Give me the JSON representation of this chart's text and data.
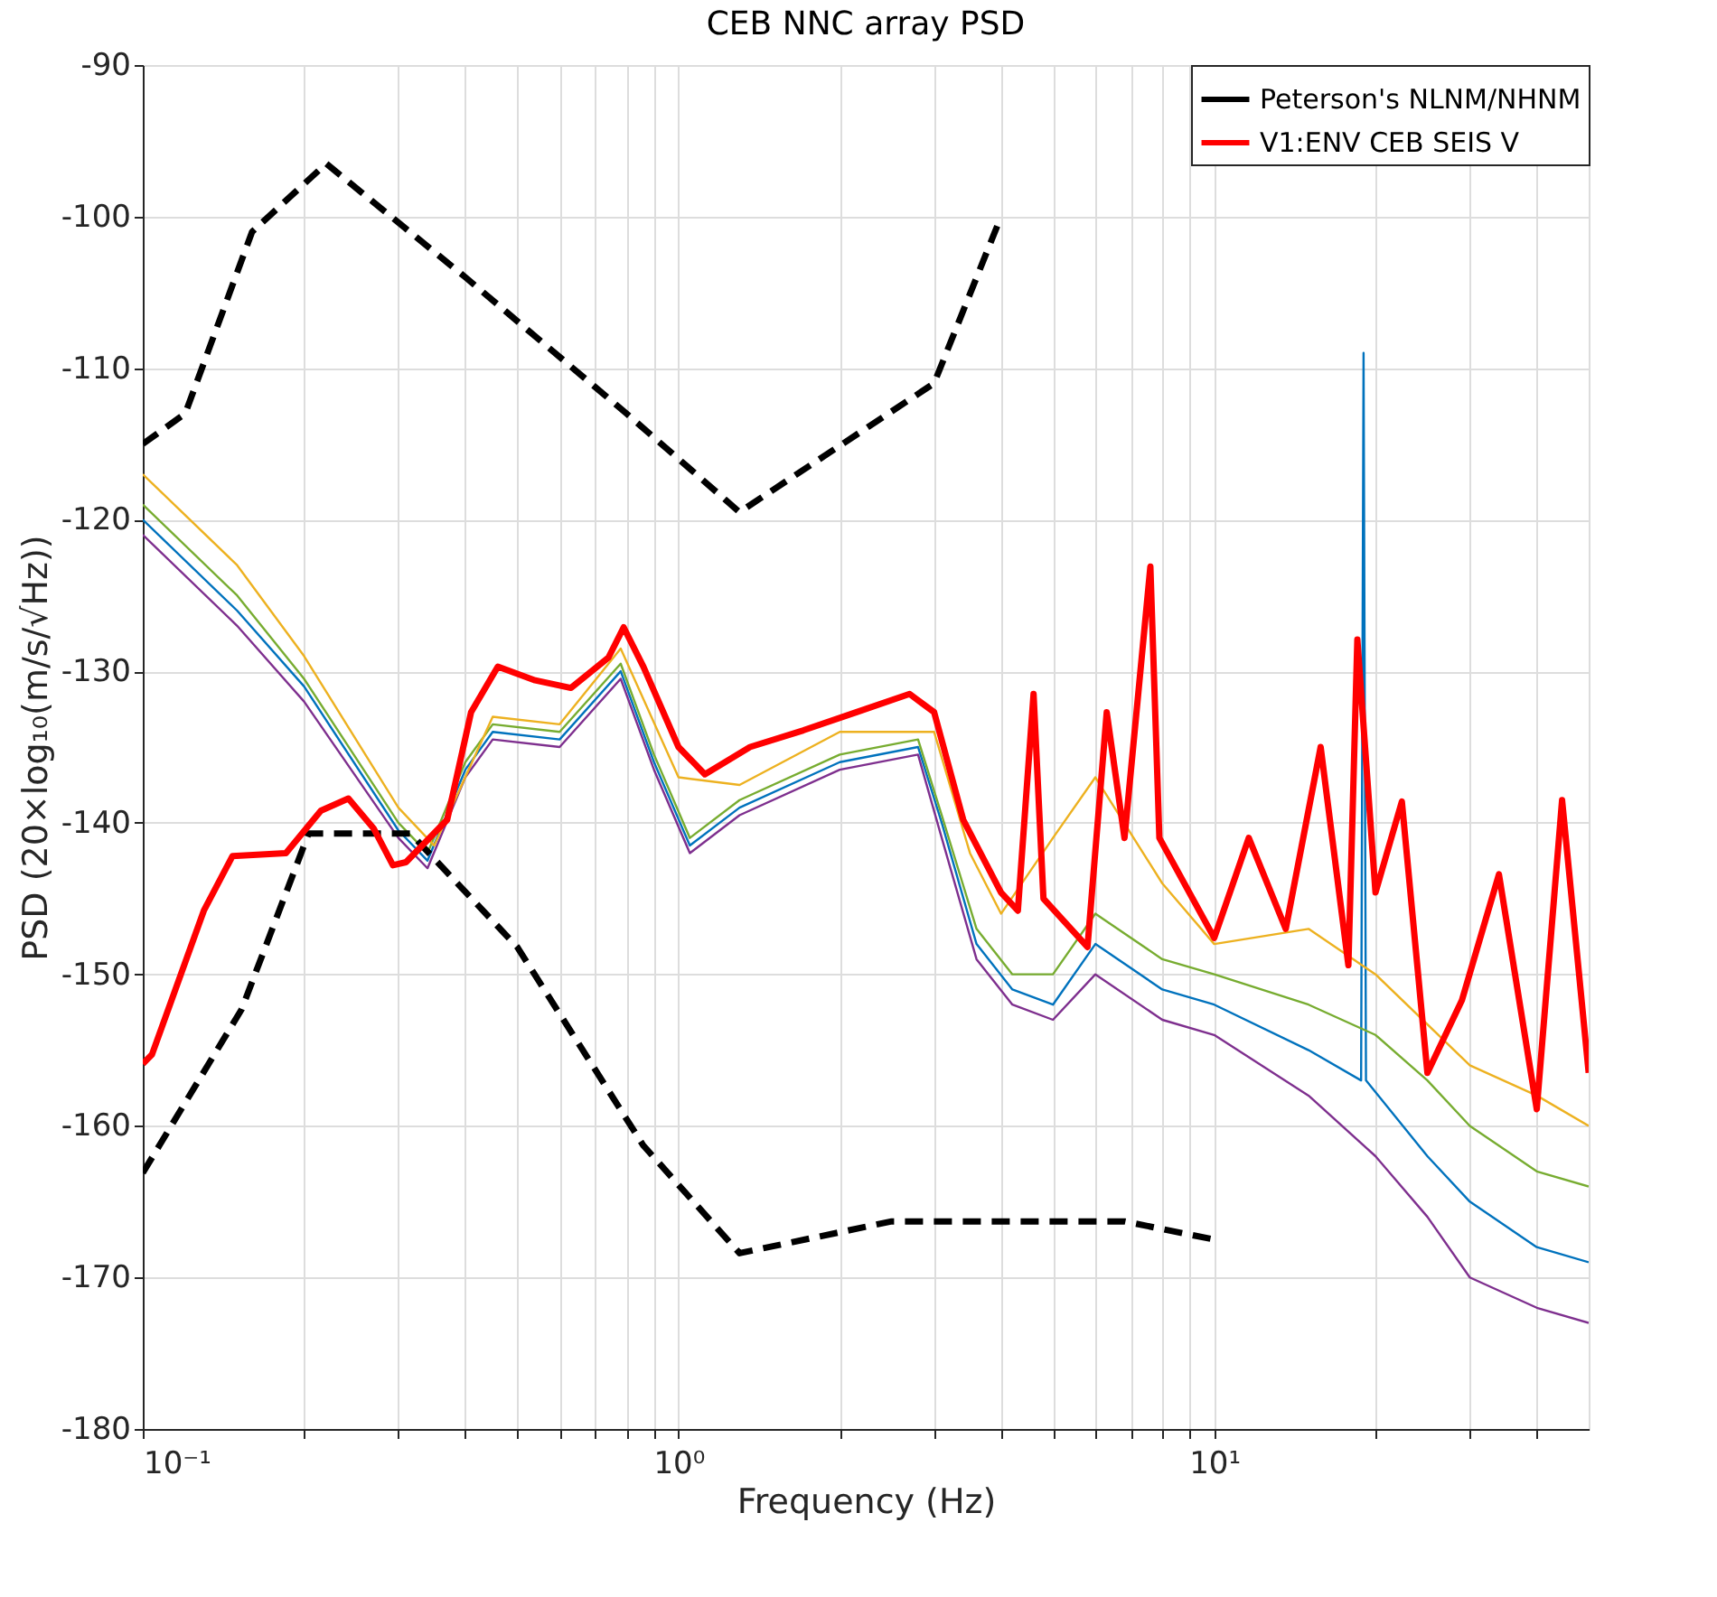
{
  "chart_data": {
    "type": "line",
    "title": "CEB NNC array PSD",
    "xlabel": "Frequency (Hz)",
    "ylabel": "PSD (20×log₁₀(m/s/√Hz))",
    "log": "x",
    "grid": true,
    "legend": "top right",
    "xlim": [
      0.1,
      50
    ],
    "ylim": [
      -180,
      -90
    ],
    "xticks": [
      {
        "value": 0.1,
        "label": "10⁻¹"
      },
      {
        "value": 0.2,
        "label": null
      },
      {
        "value": 0.3,
        "label": null
      },
      {
        "value": 0.4,
        "label": null
      },
      {
        "value": 0.5,
        "label": null
      },
      {
        "value": 0.6,
        "label": null
      },
      {
        "value": 0.7,
        "label": null
      },
      {
        "value": 0.8,
        "label": null
      },
      {
        "value": 0.9,
        "label": null
      },
      {
        "value": 1,
        "label": "10⁰"
      },
      {
        "value": 2,
        "label": null
      },
      {
        "value": 3,
        "label": null
      },
      {
        "value": 4,
        "label": null
      },
      {
        "value": 5,
        "label": null
      },
      {
        "value": 6,
        "label": null
      },
      {
        "value": 7,
        "label": null
      },
      {
        "value": 8,
        "label": null
      },
      {
        "value": 9,
        "label": null
      },
      {
        "value": 10,
        "label": "10¹"
      },
      {
        "value": 20,
        "label": null
      },
      {
        "value": 30,
        "label": null
      },
      {
        "value": 40,
        "label": null
      }
    ],
    "yticks": [
      -180,
      -170,
      -160,
      -150,
      -140,
      -130,
      -120,
      -110,
      -100,
      -90
    ],
    "series": [
      {
        "color": "#7e2f8e",
        "x": [
          0.1,
          0.15,
          0.2,
          0.3,
          0.34,
          0.4,
          0.45,
          0.6,
          0.78,
          0.9,
          1.05,
          1.3,
          2,
          2.8,
          3.1,
          3.6,
          4.2,
          5,
          6,
          8,
          10,
          15,
          20,
          25,
          30,
          40,
          50
        ],
        "values": [
          -121,
          -127,
          -132,
          -141,
          -143,
          -137,
          -134.5,
          -135,
          -130.5,
          -136.5,
          -142,
          -139.5,
          -136.5,
          -135.5,
          -141,
          -149,
          -152,
          -153,
          -150,
          -153,
          -154,
          -158,
          -162,
          -166,
          -170,
          -172,
          -173
        ]
      },
      {
        "color": "#0072bd",
        "x": [
          0.1,
          0.15,
          0.2,
          0.3,
          0.34,
          0.4,
          0.45,
          0.6,
          0.78,
          0.9,
          1.05,
          1.3,
          2,
          2.8,
          3.1,
          3.6,
          4.2,
          5,
          6,
          8,
          10,
          15,
          18.8,
          19,
          19.2,
          25,
          30,
          40,
          50
        ],
        "values": [
          -120,
          -126,
          -131,
          -140.5,
          -142.5,
          -136.5,
          -134,
          -134.5,
          -130,
          -136,
          -141.5,
          -139,
          -136,
          -135,
          -140,
          -148,
          -151,
          -152,
          -148,
          -151,
          -152,
          -155,
          -157,
          -109,
          -157,
          -162,
          -165,
          -168,
          -169
        ]
      },
      {
        "color": "#77ac30",
        "x": [
          0.1,
          0.15,
          0.2,
          0.3,
          0.34,
          0.4,
          0.45,
          0.6,
          0.78,
          0.9,
          1.05,
          1.3,
          2,
          2.8,
          3.1,
          3.6,
          4.2,
          5,
          6,
          8,
          10,
          15,
          20,
          25,
          30,
          40,
          50
        ],
        "values": [
          -119,
          -125,
          -130.5,
          -140,
          -142,
          -136,
          -133.5,
          -134,
          -129.5,
          -135.5,
          -141,
          -138.5,
          -135.5,
          -134.5,
          -139.5,
          -147,
          -150,
          -150,
          -146,
          -149,
          -150,
          -152,
          -154,
          -157,
          -160,
          -163,
          -164
        ]
      },
      {
        "color": "#edb120",
        "x": [
          0.1,
          0.15,
          0.2,
          0.3,
          0.35,
          0.45,
          0.6,
          0.78,
          1,
          1.3,
          2,
          3,
          3.5,
          4,
          5,
          6,
          8,
          10,
          15,
          20,
          30,
          40,
          50
        ],
        "values": [
          -117,
          -123,
          -129,
          -139,
          -141.5,
          -133,
          -133.5,
          -128.5,
          -137,
          -137.5,
          -134,
          -134,
          -142,
          -146,
          -141,
          -137,
          -144,
          -148,
          -147,
          -150,
          -156,
          -158,
          -160
        ]
      },
      {
        "name": "Peterson's NLNM/NHNM",
        "color": "#000000",
        "line_style": "dashed",
        "x": [
          0.1,
          0.153,
          0.204,
          0.316,
          0.5,
          0.86,
          1.3,
          2.5,
          6.8,
          10
        ],
        "values": [
          -163.1,
          -152.3,
          -140.7,
          -140.7,
          -148.2,
          -161.3,
          -168.4,
          -166.3,
          -166.3,
          -167.5
        ]
      },
      {
        "color": "#000000",
        "line_style": "dashed",
        "x": [
          0.1,
          0.12,
          0.16,
          0.22,
          0.4,
          0.8,
          1.3,
          3,
          4
        ],
        "values": [
          -115,
          -113,
          -101,
          -96.5,
          -104,
          -113,
          -119.5,
          -111,
          -100
        ]
      },
      {
        "name": "V1:ENV CEB SEIS V",
        "color": "#ff0000",
        "line_style": "solid",
        "x": [
          0.1,
          0.104,
          0.13,
          0.147,
          0.185,
          0.215,
          0.242,
          0.27,
          0.293,
          0.31,
          0.37,
          0.41,
          0.46,
          0.54,
          0.63,
          0.74,
          0.79,
          0.86,
          1.0,
          1.12,
          1.36,
          1.71,
          2.15,
          2.7,
          3.0,
          3.4,
          4.0,
          4.3,
          4.6,
          4.8,
          5.8,
          6.3,
          6.8,
          7.6,
          7.9,
          10,
          11.6,
          13.6,
          15.8,
          17.8,
          18.5,
          20,
          22.4,
          25,
          29,
          34,
          40,
          44.6,
          50
        ],
        "values": [
          -155.9,
          -155.3,
          -145.8,
          -142.2,
          -142,
          -139.2,
          -138.4,
          -140.4,
          -142.8,
          -142.6,
          -139.8,
          -132.7,
          -129.7,
          -130.6,
          -131.1,
          -129.1,
          -127.1,
          -129.7,
          -135,
          -136.8,
          -135,
          -133.9,
          -132.7,
          -131.5,
          -132.7,
          -139.8,
          -144.6,
          -145.8,
          -131.5,
          -145,
          -148.2,
          -132.7,
          -141,
          -123.1,
          -141,
          -147.6,
          -141,
          -147,
          -135,
          -149.4,
          -127.9,
          -144.6,
          -138.6,
          -156.5,
          -151.7,
          -143.4,
          -158.9,
          -138.5,
          -156.5
        ]
      }
    ]
  }
}
